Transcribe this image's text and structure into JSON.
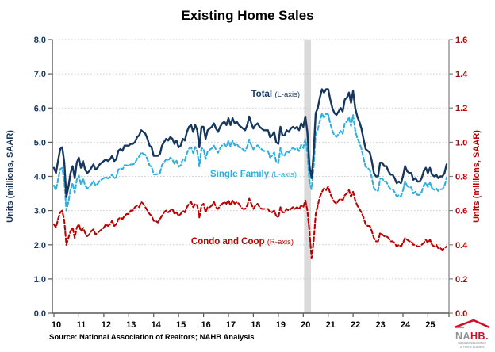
{
  "title": "Existing Home Sales",
  "source": "Source: National Association of Realtors; NAHB Analysis",
  "logo": {
    "na": "NA",
    "hb": "HB.",
    "tag1": "National Association",
    "tag2": "of Home Builders"
  },
  "chart_data": {
    "type": "line",
    "title": "Existing Home Sales",
    "frequency": "monthly",
    "x_start": "2010-01",
    "x_end": "2025-10",
    "x_tick_labels": [
      "10",
      "11",
      "12",
      "13",
      "14",
      "15",
      "16",
      "17",
      "18",
      "19",
      "20",
      "21",
      "22",
      "23",
      "24",
      "25"
    ],
    "grid": "horizontal-dotted",
    "left_axis": {
      "title": "Units (millions, SAAR)",
      "min": 0,
      "max": 8,
      "tick_step": 1,
      "tick_labels": [
        "0.0",
        "1.0",
        "2.0",
        "3.0",
        "4.0",
        "5.0",
        "6.0",
        "7.0",
        "8.0"
      ],
      "color": "#17375E"
    },
    "right_axis": {
      "title": "Units (millions, SAAR)",
      "min": 0,
      "max": 1.6,
      "tick_step": 0.2,
      "tick_labels": [
        "0.0",
        "0.2",
        "0.4",
        "0.6",
        "0.8",
        "1.0",
        "1.2",
        "1.4",
        "1.6"
      ],
      "color": "#C00000"
    },
    "recession_band": {
      "start_month_index": 121,
      "end_month_index": 123,
      "color": "#DADADA"
    },
    "series": [
      {
        "name": "Total",
        "axis": "left",
        "line": "solid",
        "color": "#17375E",
        "label_bold": "Total",
        "label_small": "(L-axis)",
        "values": [
          4.25,
          4.1,
          4.45,
          4.8,
          4.85,
          4.4,
          3.4,
          3.7,
          4.1,
          4.3,
          3.95,
          4.4,
          4.55,
          4.25,
          4.45,
          4.2,
          4.1,
          4.15,
          4.25,
          4.35,
          4.2,
          4.25,
          4.35,
          4.4,
          4.45,
          4.5,
          4.45,
          4.5,
          4.6,
          4.45,
          4.5,
          4.75,
          4.8,
          4.75,
          4.9,
          4.9,
          4.9,
          4.95,
          4.95,
          5.0,
          5.15,
          5.2,
          5.35,
          5.3,
          5.25,
          5.1,
          4.9,
          4.85,
          4.6,
          4.6,
          4.6,
          4.65,
          4.9,
          5.0,
          5.1,
          5.05,
          5.15,
          5.1,
          4.95,
          5.05,
          4.85,
          4.9,
          5.1,
          5.05,
          5.3,
          5.45,
          5.5,
          5.3,
          5.5,
          5.35,
          4.85,
          5.45,
          5.45,
          5.1,
          5.35,
          5.4,
          5.45,
          5.55,
          5.4,
          5.3,
          5.45,
          5.55,
          5.6,
          5.5,
          5.7,
          5.5,
          5.7,
          5.55,
          5.6,
          5.5,
          5.45,
          5.4,
          5.35,
          5.5,
          5.75,
          5.55,
          5.4,
          5.5,
          5.55,
          5.45,
          5.4,
          5.35,
          5.35,
          5.35,
          5.15,
          5.2,
          5.3,
          5.0,
          4.95,
          5.45,
          5.2,
          5.2,
          5.35,
          5.3,
          5.4,
          5.45,
          5.4,
          5.45,
          5.35,
          5.55,
          5.45,
          5.75,
          5.3,
          4.3,
          3.95,
          4.7,
          5.85,
          6.0,
          6.3,
          6.55,
          6.45,
          6.55,
          6.55,
          6.25,
          6.0,
          5.85,
          5.8,
          5.9,
          6.0,
          5.9,
          6.25,
          6.3,
          6.45,
          6.15,
          6.5,
          6.0,
          5.75,
          5.6,
          5.4,
          5.1,
          4.8,
          4.75,
          4.7,
          4.45,
          4.1,
          4.0,
          4.0,
          4.4,
          4.4,
          4.3,
          4.3,
          4.15,
          4.05,
          4.05,
          3.95,
          3.8,
          3.85,
          3.8,
          4.0,
          4.3,
          4.15,
          4.1,
          4.1,
          3.9,
          3.95,
          3.85,
          3.85,
          3.95,
          4.15,
          4.25,
          4.1,
          4.25,
          4.05,
          4.0,
          4.05,
          3.95,
          4.0,
          4.0,
          4.1,
          4.35
        ]
      },
      {
        "name": "Single Family",
        "axis": "left",
        "line": "dashed",
        "color": "#2EAFDF",
        "label_bold": "Single Family",
        "label_small": "(L-axis)",
        "values": [
          3.73,
          3.6,
          3.9,
          4.21,
          4.25,
          3.86,
          3.0,
          3.26,
          3.62,
          3.8,
          3.51,
          3.9,
          4.03,
          3.77,
          3.95,
          3.73,
          3.65,
          3.69,
          3.77,
          3.86,
          3.74,
          3.78,
          3.87,
          3.91,
          3.95,
          3.98,
          3.94,
          3.98,
          4.06,
          3.94,
          3.98,
          4.2,
          4.24,
          4.2,
          4.33,
          4.32,
          4.32,
          4.35,
          4.35,
          4.38,
          4.52,
          4.58,
          4.7,
          4.66,
          4.63,
          4.5,
          4.32,
          4.28,
          4.06,
          4.06,
          4.07,
          4.1,
          4.33,
          4.41,
          4.5,
          4.46,
          4.55,
          4.49,
          4.37,
          4.46,
          4.28,
          4.32,
          4.5,
          4.46,
          4.68,
          4.81,
          4.85,
          4.68,
          4.86,
          4.72,
          4.29,
          4.82,
          4.81,
          4.51,
          4.73,
          4.78,
          4.82,
          4.9,
          4.78,
          4.69,
          4.82,
          4.91,
          4.95,
          4.86,
          5.04,
          4.87,
          5.04,
          4.91,
          4.95,
          4.86,
          4.83,
          4.79,
          4.74,
          4.87,
          5.08,
          4.91,
          4.79,
          4.87,
          4.91,
          4.83,
          4.79,
          4.74,
          4.74,
          4.74,
          4.56,
          4.61,
          4.7,
          4.43,
          4.39,
          4.83,
          4.61,
          4.61,
          4.74,
          4.7,
          4.79,
          4.83,
          4.79,
          4.83,
          4.74,
          4.92,
          4.83,
          5.09,
          4.7,
          3.82,
          3.63,
          4.28,
          5.27,
          5.37,
          5.62,
          5.84,
          5.72,
          5.83,
          5.81,
          5.55,
          5.33,
          5.2,
          5.16,
          5.24,
          5.33,
          5.24,
          5.56,
          5.6,
          5.73,
          5.47,
          5.79,
          5.34,
          5.12,
          4.99,
          4.81,
          4.54,
          4.28,
          4.24,
          4.19,
          3.97,
          3.66,
          3.58,
          3.58,
          3.93,
          3.94,
          3.85,
          3.85,
          3.71,
          3.63,
          3.63,
          3.54,
          3.41,
          3.45,
          3.41,
          3.59,
          3.86,
          3.72,
          3.68,
          3.68,
          3.5,
          3.55,
          3.46,
          3.46,
          3.55,
          3.74,
          3.82,
          3.69,
          3.82,
          3.65,
          3.61,
          3.65,
          3.57,
          3.62,
          3.63,
          3.72,
          3.96
        ]
      },
      {
        "name": "Condo and Coop",
        "axis": "right",
        "line": "dashed",
        "color": "#C00000",
        "label_bold": "Condo and Coop",
        "label_small": "(R-axis)",
        "values": [
          0.52,
          0.5,
          0.55,
          0.59,
          0.6,
          0.54,
          0.4,
          0.44,
          0.48,
          0.5,
          0.44,
          0.5,
          0.52,
          0.48,
          0.5,
          0.47,
          0.45,
          0.46,
          0.48,
          0.49,
          0.46,
          0.47,
          0.48,
          0.49,
          0.5,
          0.52,
          0.51,
          0.52,
          0.54,
          0.51,
          0.52,
          0.55,
          0.56,
          0.55,
          0.57,
          0.58,
          0.58,
          0.6,
          0.6,
          0.62,
          0.63,
          0.62,
          0.65,
          0.64,
          0.62,
          0.6,
          0.58,
          0.57,
          0.54,
          0.54,
          0.53,
          0.55,
          0.57,
          0.59,
          0.6,
          0.59,
          0.6,
          0.61,
          0.58,
          0.59,
          0.57,
          0.58,
          0.6,
          0.59,
          0.62,
          0.64,
          0.65,
          0.62,
          0.64,
          0.63,
          0.56,
          0.63,
          0.64,
          0.59,
          0.62,
          0.62,
          0.63,
          0.65,
          0.62,
          0.61,
          0.63,
          0.64,
          0.65,
          0.64,
          0.66,
          0.63,
          0.66,
          0.64,
          0.65,
          0.64,
          0.62,
          0.61,
          0.61,
          0.63,
          0.67,
          0.64,
          0.61,
          0.63,
          0.64,
          0.62,
          0.61,
          0.61,
          0.61,
          0.61,
          0.59,
          0.59,
          0.6,
          0.57,
          0.56,
          0.62,
          0.59,
          0.59,
          0.61,
          0.6,
          0.61,
          0.62,
          0.61,
          0.62,
          0.61,
          0.63,
          0.62,
          0.66,
          0.6,
          0.48,
          0.32,
          0.42,
          0.58,
          0.63,
          0.68,
          0.71,
          0.73,
          0.72,
          0.74,
          0.7,
          0.67,
          0.65,
          0.64,
          0.66,
          0.67,
          0.66,
          0.69,
          0.7,
          0.72,
          0.68,
          0.71,
          0.66,
          0.63,
          0.61,
          0.59,
          0.56,
          0.52,
          0.51,
          0.51,
          0.48,
          0.44,
          0.42,
          0.42,
          0.47,
          0.46,
          0.45,
          0.45,
          0.44,
          0.42,
          0.42,
          0.41,
          0.39,
          0.4,
          0.39,
          0.41,
          0.44,
          0.43,
          0.42,
          0.42,
          0.4,
          0.4,
          0.39,
          0.39,
          0.4,
          0.41,
          0.43,
          0.41,
          0.43,
          0.4,
          0.39,
          0.4,
          0.38,
          0.38,
          0.37,
          0.38,
          0.39
        ]
      }
    ]
  }
}
